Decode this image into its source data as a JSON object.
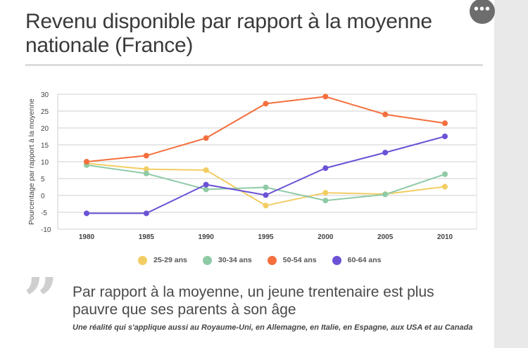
{
  "title": "Revenu disponible par rapport à la moyenne nationale (France)",
  "menu_label": "•••",
  "quote": {
    "mark": "”",
    "text": "Par rapport à la moyenne, un jeune trentenaire est plus pauvre que ses parents à son âge",
    "subtext": "Une réalité qui s'applique aussi au Royaume-Uni, en Allemagne, en Italie, en Espagne, aux USA et au Canada"
  },
  "chart_data": {
    "type": "line",
    "title": "Revenu disponible par rapport à la moyenne nationale (France)",
    "xlabel": "",
    "ylabel": "Pourcentage par rapport à la moyenne",
    "x": [
      1980,
      1985,
      1990,
      1995,
      2000,
      2005,
      2010
    ],
    "ylim": [
      -10,
      30
    ],
    "yticks": [
      30,
      25,
      20,
      15,
      10,
      5,
      0,
      -5,
      -10
    ],
    "grid": true,
    "legend_position": "bottom",
    "series": [
      {
        "name": "25-29 ans",
        "color": "#f2cd63",
        "values": [
          9.5,
          7.8,
          7.5,
          -3.0,
          0.8,
          0.4,
          2.6
        ]
      },
      {
        "name": "30-34 ans",
        "color": "#8fcaa6",
        "values": [
          9.0,
          6.5,
          1.8,
          2.4,
          -1.5,
          0.3,
          6.3
        ]
      },
      {
        "name": "50-54 ans",
        "color": "#f46f3d",
        "values": [
          10.0,
          11.8,
          17.0,
          27.2,
          29.3,
          24.0,
          21.4
        ]
      },
      {
        "name": "60-64 ans",
        "color": "#6b52d6",
        "values": [
          -5.3,
          -5.3,
          3.2,
          0.1,
          8.1,
          12.7,
          17.5
        ]
      }
    ]
  }
}
